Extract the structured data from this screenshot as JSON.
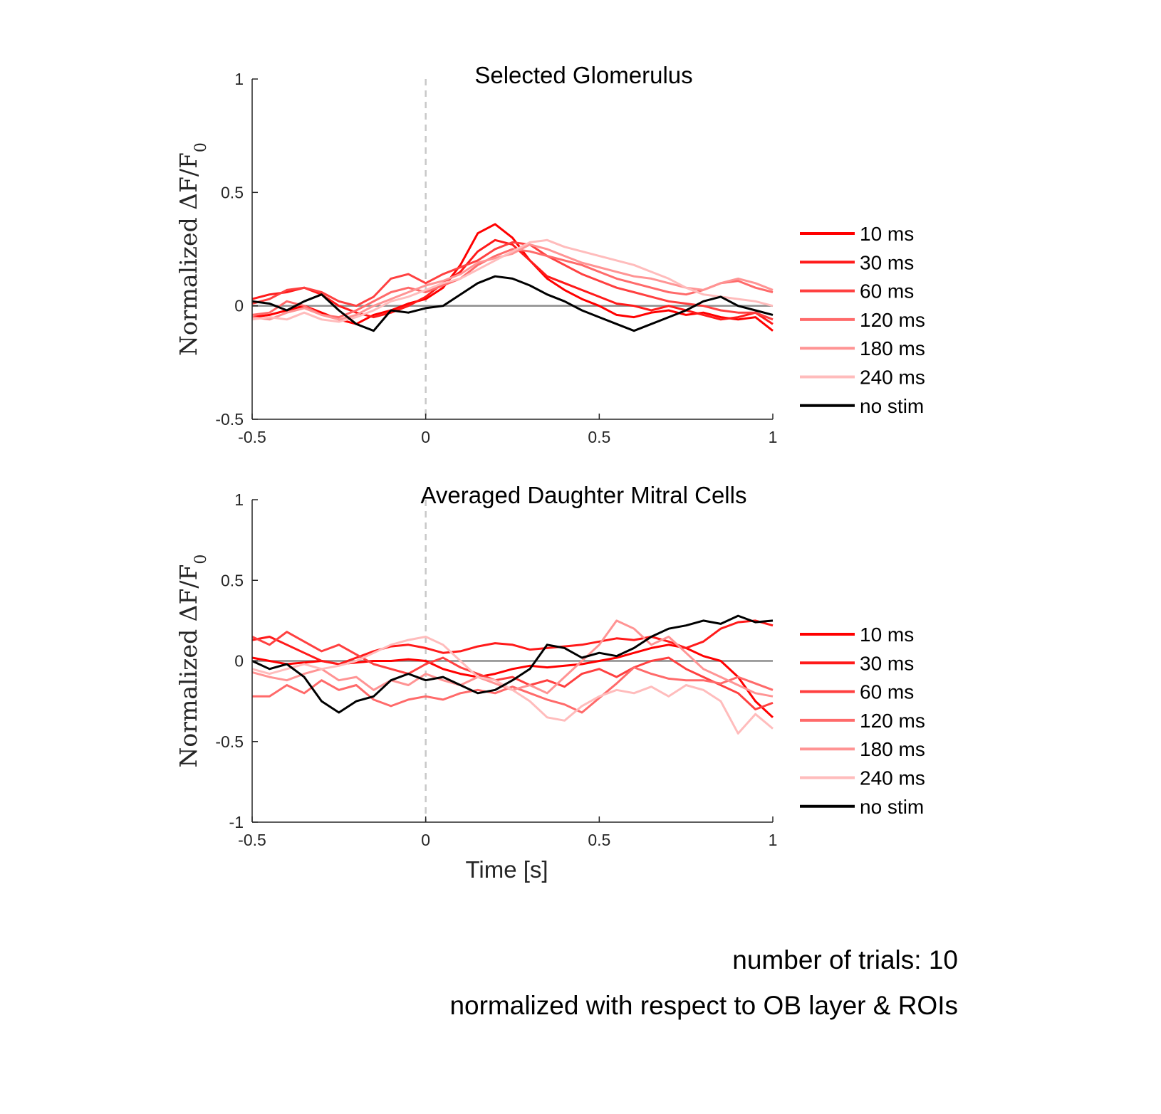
{
  "chart_data": [
    {
      "type": "line",
      "title": "Selected Glomerulus",
      "ylabel": "Normalized ΔF/F",
      "ylabel_sub": "0",
      "xlabel": "",
      "xlim": [
        -0.5,
        1
      ],
      "ylim": [
        -0.5,
        1
      ],
      "xticks": [
        "-0.5",
        "0",
        "0.5",
        "1"
      ],
      "yticks": [
        "-0.5",
        "0",
        "0.5",
        "1"
      ],
      "zero_line": true,
      "stim_line_x": 0,
      "grid": false,
      "legend_position": "right",
      "series": [
        {
          "name": "10 ms",
          "color": "#ff0000",
          "x": [
            -0.5,
            -0.45,
            -0.4,
            -0.35,
            -0.3,
            -0.25,
            -0.2,
            -0.15,
            -0.1,
            -0.05,
            0,
            0.05,
            0.1,
            0.15,
            0.2,
            0.25,
            0.3,
            0.35,
            0.4,
            0.45,
            0.5,
            0.55,
            0.6,
            0.65,
            0.7,
            0.75,
            0.8,
            0.85,
            0.9,
            0.95,
            1
          ],
          "y": [
            -0.05,
            -0.04,
            -0.02,
            0.0,
            -0.03,
            -0.06,
            -0.08,
            -0.04,
            -0.02,
            0.01,
            0.03,
            0.08,
            0.18,
            0.32,
            0.36,
            0.3,
            0.2,
            0.12,
            0.07,
            0.03,
            0.0,
            -0.04,
            -0.05,
            -0.03,
            -0.02,
            -0.04,
            -0.03,
            -0.05,
            -0.06,
            -0.05,
            -0.11
          ]
        },
        {
          "name": "30 ms",
          "color": "#ff1a1a",
          "x": [
            -0.5,
            -0.45,
            -0.4,
            -0.35,
            -0.3,
            -0.25,
            -0.2,
            -0.15,
            -0.1,
            -0.05,
            0,
            0.05,
            0.1,
            0.15,
            0.2,
            0.25,
            0.3,
            0.35,
            0.4,
            0.45,
            0.5,
            0.55,
            0.6,
            0.65,
            0.7,
            0.75,
            0.8,
            0.85,
            0.9,
            0.95,
            1
          ],
          "y": [
            0.03,
            0.05,
            0.06,
            0.08,
            0.05,
            0.0,
            -0.03,
            -0.05,
            -0.03,
            0.0,
            0.04,
            0.1,
            0.15,
            0.24,
            0.29,
            0.27,
            0.2,
            0.13,
            0.1,
            0.07,
            0.04,
            0.01,
            0.0,
            -0.02,
            0.0,
            -0.02,
            -0.04,
            -0.06,
            -0.05,
            -0.03,
            -0.08
          ]
        },
        {
          "name": "60 ms",
          "color": "#ff4040",
          "x": [
            -0.5,
            -0.45,
            -0.4,
            -0.35,
            -0.3,
            -0.25,
            -0.2,
            -0.15,
            -0.1,
            -0.05,
            0,
            0.05,
            0.1,
            0.15,
            0.2,
            0.25,
            0.3,
            0.35,
            0.4,
            0.45,
            0.5,
            0.55,
            0.6,
            0.65,
            0.7,
            0.75,
            0.8,
            0.85,
            0.9,
            0.95,
            1
          ],
          "y": [
            0.01,
            0.03,
            0.07,
            0.08,
            0.06,
            0.02,
            0.0,
            0.04,
            0.12,
            0.14,
            0.1,
            0.14,
            0.17,
            0.2,
            0.25,
            0.28,
            0.27,
            0.22,
            0.18,
            0.14,
            0.11,
            0.08,
            0.06,
            0.04,
            0.02,
            0.01,
            0.0,
            -0.02,
            -0.03,
            -0.03,
            -0.06
          ]
        },
        {
          "name": "120 ms",
          "color": "#ff6a6a",
          "x": [
            -0.5,
            -0.45,
            -0.4,
            -0.35,
            -0.3,
            -0.25,
            -0.2,
            -0.15,
            -0.1,
            -0.05,
            0,
            0.05,
            0.1,
            0.15,
            0.2,
            0.25,
            0.3,
            0.35,
            0.4,
            0.45,
            0.5,
            0.55,
            0.6,
            0.65,
            0.7,
            0.75,
            0.8,
            0.85,
            0.9,
            0.95,
            1
          ],
          "y": [
            -0.04,
            -0.03,
            0.02,
            0.0,
            -0.04,
            -0.05,
            -0.02,
            0.02,
            0.06,
            0.08,
            0.06,
            0.09,
            0.12,
            0.18,
            0.22,
            0.25,
            0.24,
            0.22,
            0.2,
            0.18,
            0.15,
            0.12,
            0.1,
            0.08,
            0.06,
            0.05,
            0.07,
            0.1,
            0.11,
            0.08,
            0.06
          ]
        },
        {
          "name": "180 ms",
          "color": "#ff9494",
          "x": [
            -0.5,
            -0.45,
            -0.4,
            -0.35,
            -0.3,
            -0.25,
            -0.2,
            -0.15,
            -0.1,
            -0.05,
            0,
            0.05,
            0.1,
            0.15,
            0.2,
            0.25,
            0.3,
            0.35,
            0.4,
            0.45,
            0.5,
            0.55,
            0.6,
            0.65,
            0.7,
            0.75,
            0.8,
            0.85,
            0.9,
            0.95,
            1
          ],
          "y": [
            -0.05,
            -0.06,
            -0.03,
            -0.01,
            -0.04,
            -0.06,
            -0.04,
            0.0,
            0.03,
            0.06,
            0.09,
            0.11,
            0.14,
            0.19,
            0.21,
            0.23,
            0.27,
            0.25,
            0.22,
            0.19,
            0.17,
            0.15,
            0.13,
            0.12,
            0.1,
            0.08,
            0.07,
            0.1,
            0.12,
            0.1,
            0.07
          ]
        },
        {
          "name": "240 ms",
          "color": "#ffbcbc",
          "x": [
            -0.5,
            -0.45,
            -0.4,
            -0.35,
            -0.3,
            -0.25,
            -0.2,
            -0.15,
            -0.1,
            -0.05,
            0,
            0.05,
            0.1,
            0.15,
            0.2,
            0.25,
            0.3,
            0.35,
            0.4,
            0.45,
            0.5,
            0.55,
            0.6,
            0.65,
            0.7,
            0.75,
            0.8,
            0.85,
            0.9,
            0.95,
            1
          ],
          "y": [
            -0.06,
            -0.05,
            -0.06,
            -0.03,
            -0.06,
            -0.07,
            -0.05,
            -0.02,
            0.02,
            0.04,
            0.07,
            0.1,
            0.12,
            0.16,
            0.2,
            0.24,
            0.28,
            0.29,
            0.26,
            0.24,
            0.22,
            0.2,
            0.18,
            0.15,
            0.12,
            0.08,
            0.05,
            0.04,
            0.03,
            0.02,
            0.0
          ]
        },
        {
          "name": "no stim",
          "color": "#000000",
          "x": [
            -0.5,
            -0.45,
            -0.4,
            -0.35,
            -0.3,
            -0.25,
            -0.2,
            -0.15,
            -0.1,
            -0.05,
            0,
            0.05,
            0.1,
            0.15,
            0.2,
            0.25,
            0.3,
            0.35,
            0.4,
            0.45,
            0.5,
            0.55,
            0.6,
            0.65,
            0.7,
            0.75,
            0.8,
            0.85,
            0.9,
            0.95,
            1
          ],
          "y": [
            0.02,
            0.01,
            -0.02,
            0.02,
            0.05,
            -0.02,
            -0.08,
            -0.11,
            -0.02,
            -0.03,
            -0.01,
            0.0,
            0.05,
            0.1,
            0.13,
            0.12,
            0.09,
            0.05,
            0.02,
            -0.02,
            -0.05,
            -0.08,
            -0.11,
            -0.08,
            -0.05,
            -0.02,
            0.02,
            0.04,
            0.0,
            -0.02,
            -0.04
          ]
        }
      ]
    },
    {
      "type": "line",
      "title": "Averaged Daughter Mitral Cells",
      "ylabel": "Normalized ΔF/F",
      "ylabel_sub": "0",
      "xlabel": "Time [s]",
      "xlim": [
        -0.5,
        1
      ],
      "ylim": [
        -1,
        1
      ],
      "xticks": [
        "-0.5",
        "0",
        "0.5",
        "1"
      ],
      "yticks": [
        "-1",
        "-0.5",
        "0",
        "0.5",
        "1"
      ],
      "zero_line": true,
      "stim_line_x": 0,
      "grid": false,
      "legend_position": "right",
      "series": [
        {
          "name": "10 ms",
          "color": "#ff0000",
          "x": [
            -0.5,
            -0.45,
            -0.4,
            -0.35,
            -0.3,
            -0.25,
            -0.2,
            -0.15,
            -0.1,
            -0.05,
            0,
            0.05,
            0.1,
            0.15,
            0.2,
            0.25,
            0.3,
            0.35,
            0.4,
            0.45,
            0.5,
            0.55,
            0.6,
            0.65,
            0.7,
            0.75,
            0.8,
            0.85,
            0.9,
            0.95,
            1
          ],
          "y": [
            0.02,
            0.0,
            -0.02,
            -0.01,
            0.0,
            -0.02,
            -0.01,
            0.0,
            0.0,
            0.01,
            0.0,
            -0.05,
            -0.08,
            -0.1,
            -0.08,
            -0.05,
            -0.03,
            -0.04,
            -0.03,
            -0.02,
            0.0,
            0.02,
            0.05,
            0.08,
            0.1,
            0.08,
            0.03,
            0.0,
            -0.1,
            -0.25,
            -0.35
          ]
        },
        {
          "name": "30 ms",
          "color": "#ff1a1a",
          "x": [
            -0.5,
            -0.45,
            -0.4,
            -0.35,
            -0.3,
            -0.25,
            -0.2,
            -0.15,
            -0.1,
            -0.05,
            0,
            0.05,
            0.1,
            0.15,
            0.2,
            0.25,
            0.3,
            0.35,
            0.4,
            0.45,
            0.5,
            0.55,
            0.6,
            0.65,
            0.7,
            0.75,
            0.8,
            0.85,
            0.9,
            0.95,
            1
          ],
          "y": [
            0.13,
            0.15,
            0.1,
            0.05,
            0.0,
            -0.02,
            0.02,
            0.06,
            0.09,
            0.1,
            0.08,
            0.05,
            0.06,
            0.09,
            0.11,
            0.1,
            0.07,
            0.08,
            0.09,
            0.1,
            0.12,
            0.14,
            0.13,
            0.15,
            0.12,
            0.08,
            0.12,
            0.2,
            0.24,
            0.25,
            0.22
          ]
        },
        {
          "name": "60 ms",
          "color": "#ff4040",
          "x": [
            -0.5,
            -0.45,
            -0.4,
            -0.35,
            -0.3,
            -0.25,
            -0.2,
            -0.15,
            -0.1,
            -0.05,
            0,
            0.05,
            0.1,
            0.15,
            0.2,
            0.25,
            0.3,
            0.35,
            0.4,
            0.45,
            0.5,
            0.55,
            0.6,
            0.65,
            0.7,
            0.75,
            0.8,
            0.85,
            0.9,
            0.95,
            1
          ],
          "y": [
            0.15,
            0.1,
            0.18,
            0.12,
            0.06,
            0.1,
            0.04,
            -0.02,
            -0.05,
            -0.08,
            -0.02,
            0.02,
            -0.04,
            -0.08,
            -0.12,
            -0.1,
            -0.15,
            -0.12,
            -0.16,
            -0.08,
            -0.05,
            -0.1,
            -0.04,
            0.0,
            0.02,
            -0.05,
            -0.1,
            -0.15,
            -0.2,
            -0.3,
            -0.26
          ]
        },
        {
          "name": "120 ms",
          "color": "#ff6a6a",
          "x": [
            -0.5,
            -0.45,
            -0.4,
            -0.35,
            -0.3,
            -0.25,
            -0.2,
            -0.15,
            -0.1,
            -0.05,
            0,
            0.05,
            0.1,
            0.15,
            0.2,
            0.25,
            0.3,
            0.35,
            0.4,
            0.45,
            0.5,
            0.55,
            0.6,
            0.65,
            0.7,
            0.75,
            0.8,
            0.85,
            0.9,
            0.95,
            1
          ],
          "y": [
            -0.22,
            -0.22,
            -0.15,
            -0.2,
            -0.12,
            -0.18,
            -0.15,
            -0.24,
            -0.28,
            -0.24,
            -0.22,
            -0.24,
            -0.2,
            -0.18,
            -0.2,
            -0.16,
            -0.2,
            -0.24,
            -0.27,
            -0.32,
            -0.23,
            -0.14,
            -0.04,
            -0.08,
            -0.11,
            -0.12,
            -0.12,
            -0.14,
            -0.1,
            -0.14,
            -0.18
          ]
        },
        {
          "name": "180 ms",
          "color": "#ff9494",
          "x": [
            -0.5,
            -0.45,
            -0.4,
            -0.35,
            -0.3,
            -0.25,
            -0.2,
            -0.15,
            -0.1,
            -0.05,
            0,
            0.05,
            0.1,
            0.15,
            0.2,
            0.25,
            0.3,
            0.35,
            0.4,
            0.45,
            0.5,
            0.55,
            0.6,
            0.65,
            0.7,
            0.75,
            0.8,
            0.85,
            0.9,
            0.95,
            1
          ],
          "y": [
            -0.07,
            -0.1,
            -0.12,
            -0.08,
            -0.05,
            -0.12,
            -0.1,
            -0.18,
            -0.12,
            -0.15,
            -0.08,
            -0.12,
            -0.15,
            -0.1,
            -0.14,
            -0.18,
            -0.15,
            -0.2,
            -0.1,
            0.0,
            0.1,
            0.25,
            0.2,
            0.1,
            0.15,
            0.05,
            -0.05,
            -0.1,
            -0.15,
            -0.2,
            -0.22
          ]
        },
        {
          "name": "240 ms",
          "color": "#ffbcbc",
          "x": [
            -0.5,
            -0.45,
            -0.4,
            -0.35,
            -0.3,
            -0.25,
            -0.2,
            -0.15,
            -0.1,
            -0.05,
            0,
            0.05,
            0.1,
            0.15,
            0.2,
            0.25,
            0.3,
            0.35,
            0.4,
            0.45,
            0.5,
            0.55,
            0.6,
            0.65,
            0.7,
            0.75,
            0.8,
            0.85,
            0.9,
            0.95,
            1
          ],
          "y": [
            -0.05,
            -0.08,
            -0.05,
            -0.02,
            -0.05,
            -0.03,
            0.0,
            0.05,
            0.1,
            0.13,
            0.15,
            0.1,
            0.0,
            -0.1,
            -0.12,
            -0.18,
            -0.25,
            -0.35,
            -0.37,
            -0.28,
            -0.22,
            -0.18,
            -0.2,
            -0.16,
            -0.22,
            -0.15,
            -0.18,
            -0.25,
            -0.45,
            -0.33,
            -0.42
          ]
        },
        {
          "name": "no stim",
          "color": "#000000",
          "x": [
            -0.5,
            -0.45,
            -0.4,
            -0.35,
            -0.3,
            -0.25,
            -0.2,
            -0.15,
            -0.1,
            -0.05,
            0,
            0.05,
            0.1,
            0.15,
            0.2,
            0.25,
            0.3,
            0.35,
            0.4,
            0.45,
            0.5,
            0.55,
            0.6,
            0.65,
            0.7,
            0.75,
            0.8,
            0.85,
            0.9,
            0.95,
            1
          ],
          "y": [
            0.0,
            -0.05,
            -0.02,
            -0.1,
            -0.25,
            -0.32,
            -0.25,
            -0.22,
            -0.12,
            -0.08,
            -0.12,
            -0.1,
            -0.15,
            -0.2,
            -0.18,
            -0.12,
            -0.05,
            0.1,
            0.08,
            0.02,
            0.05,
            0.03,
            0.08,
            0.15,
            0.2,
            0.22,
            0.25,
            0.23,
            0.28,
            0.24,
            0.25
          ]
        }
      ]
    }
  ],
  "notes": {
    "trials": "number of trials: 10",
    "normalization": "normalized with respect to OB layer & ROIs"
  }
}
